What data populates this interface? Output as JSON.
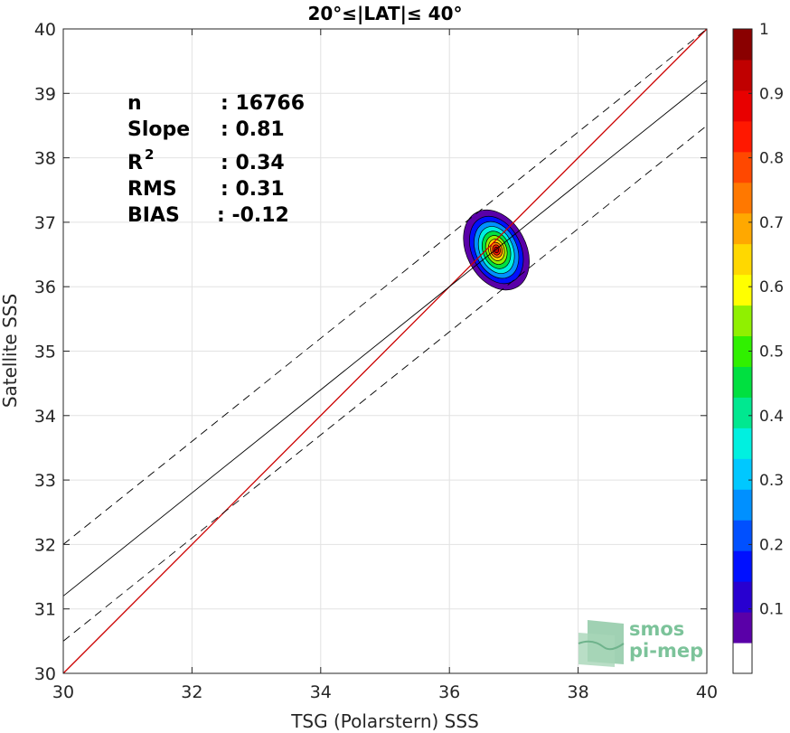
{
  "chart_data": {
    "type": "scatter",
    "title": "20°≤|LAT|≤ 40°",
    "xlabel": "TSG (Polarstern) SSS",
    "ylabel": "Satellite SSS",
    "xlim": [
      30,
      40
    ],
    "ylim": [
      30,
      40
    ],
    "xticks": [
      "30",
      "32",
      "34",
      "36",
      "38",
      "40"
    ],
    "yticks": [
      "30",
      "31",
      "32",
      "33",
      "34",
      "35",
      "36",
      "37",
      "38",
      "39",
      "40"
    ],
    "grid": true,
    "stats": {
      "n_label": "n",
      "n_value": ": 16766",
      "slope_label": "Slope",
      "slope_value": ": 0.81",
      "r2_label": "R",
      "r2_sup": "2",
      "r2_value": ": 0.34",
      "rms_label": "RMS",
      "rms_value": ": 0.31",
      "bias_label": "BIAS",
      "bias_value": ": -0.12"
    },
    "lines": {
      "identity": {
        "slope": 1.0,
        "intercept": 0.0,
        "color": "#cc0000"
      },
      "fit": {
        "slope": 0.8,
        "intercept": 7.2,
        "color": "#000000"
      },
      "fit_upper": {
        "slope": 0.8,
        "intercept": 8.0,
        "color": "#000000",
        "style": "dashed"
      },
      "fit_lower": {
        "slope": 0.8,
        "intercept": 6.5,
        "color": "#000000",
        "style": "dashed"
      }
    },
    "density": {
      "center": [
        36.73,
        36.57
      ],
      "levels": [
        0.05,
        0.15,
        0.25,
        0.35,
        0.45,
        0.55,
        0.65,
        0.75,
        0.85,
        0.95
      ],
      "sigma_x": [
        0.46,
        0.38,
        0.32,
        0.26,
        0.21,
        0.16,
        0.12,
        0.09,
        0.06,
        0.035
      ],
      "sigma_y": [
        0.66,
        0.55,
        0.46,
        0.38,
        0.3,
        0.23,
        0.17,
        0.12,
        0.08,
        0.045
      ],
      "rotation_deg": [
        -28,
        -26,
        -24,
        -22,
        -20,
        -18,
        -16,
        -14,
        -12,
        -10
      ]
    },
    "colorbar": {
      "ticks": [
        "0.1",
        "0.2",
        "0.3",
        "0.4",
        "0.5",
        "0.6",
        "0.7",
        "0.8",
        "0.9",
        "1"
      ],
      "range": [
        0,
        1
      ],
      "colors": [
        "#ffffff",
        "#5a00a8",
        "#2800d0",
        "#0010ff",
        "#0050ff",
        "#0090ff",
        "#00c8ff",
        "#00f0e0",
        "#00e890",
        "#00e040",
        "#30f000",
        "#90f000",
        "#ffff00",
        "#ffd800",
        "#ffa800",
        "#ff7800",
        "#ff4800",
        "#ff1800",
        "#e80000",
        "#c00000",
        "#8a0000"
      ]
    }
  },
  "logo": {
    "line1": "smos",
    "line2": "pi-mep"
  }
}
